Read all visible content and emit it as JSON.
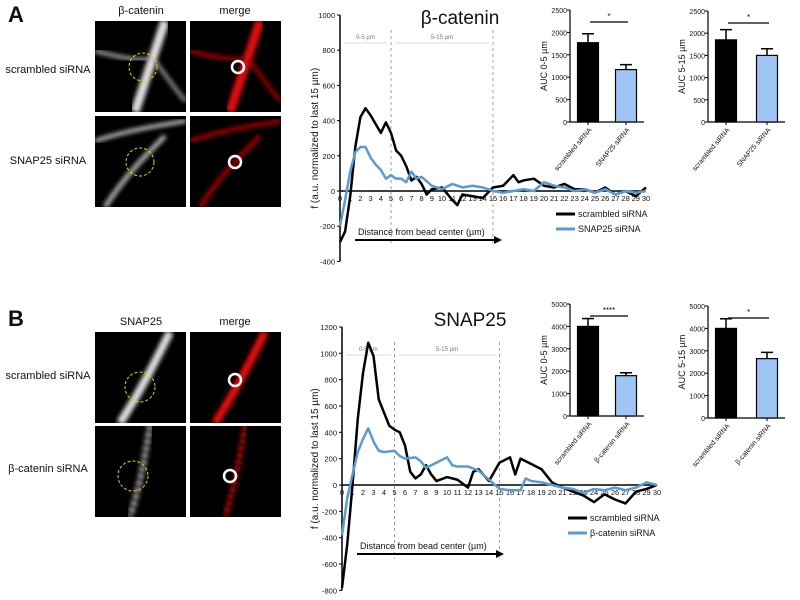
{
  "panels": [
    {
      "label": "A",
      "image_columns": [
        "β-catenin",
        "merge"
      ],
      "image_rows": [
        "scrambled siRNA",
        "SNAP25 siRNA"
      ]
    },
    {
      "label": "B",
      "image_columns": [
        "SNAP25",
        "merge"
      ],
      "image_rows": [
        "scrambled siRNA",
        "β-catenin siRNA"
      ]
    }
  ],
  "colors": {
    "scrambled": "#000000",
    "knockdown_line": "#5b9bd5",
    "knockdown_bar": "#9ec5f5",
    "merge": "#e01010"
  },
  "chart_data": [
    {
      "type": "line",
      "title": "β-catenin",
      "ylabel": "f (a.u. normalized to last 15 µm)",
      "xlabel": "Distance from bead center (µm)",
      "ylim": [
        -400,
        1000
      ],
      "yticks": [
        -400,
        -200,
        0,
        200,
        400,
        600,
        800,
        1000
      ],
      "xlim": [
        0,
        30
      ],
      "xticks": [
        0,
        1,
        2,
        3,
        4,
        5,
        6,
        7,
        8,
        9,
        10,
        11,
        12,
        13,
        14,
        15,
        16,
        17,
        18,
        19,
        20,
        21,
        22,
        23,
        24,
        25,
        26,
        27,
        28,
        29,
        30
      ],
      "regions": [
        {
          "label": "0-5 µm",
          "from": 0,
          "to": 5
        },
        {
          "label": "5-15 µm",
          "from": 5,
          "to": 15
        }
      ],
      "legend": "bottom-right",
      "series": [
        {
          "name": "scrambled siRNA",
          "x": [
            0,
            0.5,
            1,
            1.5,
            2,
            2.5,
            3,
            3.5,
            4,
            4.5,
            5,
            5.5,
            6,
            6.5,
            7,
            7.5,
            8,
            8.5,
            9,
            10,
            11,
            11.5,
            12,
            13,
            14,
            15,
            16,
            17,
            17.5,
            18,
            19,
            20,
            21,
            22,
            23,
            24,
            25,
            26,
            27,
            28,
            29,
            30
          ],
          "y": [
            -290,
            -230,
            -30,
            250,
            420,
            470,
            430,
            380,
            330,
            390,
            330,
            230,
            200,
            140,
            60,
            80,
            40,
            -20,
            10,
            20,
            -50,
            -80,
            -20,
            -30,
            -40,
            20,
            30,
            90,
            50,
            60,
            70,
            30,
            20,
            40,
            10,
            10,
            -10,
            20,
            -20,
            0,
            -30,
            20
          ]
        },
        {
          "name": "SNAP25 siRNA",
          "x": [
            0,
            0.5,
            1,
            1.5,
            2,
            2.5,
            3,
            3.5,
            4,
            4.5,
            5,
            5.5,
            6,
            6.5,
            7,
            7.5,
            8,
            9,
            10,
            11,
            12,
            13,
            14,
            15,
            16,
            17,
            18,
            19,
            20,
            21,
            22,
            23,
            24,
            25,
            26,
            27,
            28,
            29,
            30
          ],
          "y": [
            -200,
            -50,
            110,
            220,
            250,
            250,
            190,
            150,
            120,
            70,
            90,
            70,
            70,
            50,
            110,
            70,
            80,
            30,
            10,
            40,
            20,
            30,
            20,
            0,
            -10,
            0,
            10,
            0,
            50,
            30,
            20,
            0,
            10,
            -10,
            10,
            -20,
            0,
            -10,
            0
          ]
        }
      ]
    },
    {
      "type": "bar",
      "ylabel": "AUC 0-5 µm",
      "ylim": [
        0,
        2500
      ],
      "yticks": [
        0,
        500,
        1000,
        1500,
        2000,
        2500
      ],
      "categories": [
        "scrambled siRNA",
        "SNAP25 siRNA"
      ],
      "values": [
        1770,
        1170
      ],
      "errors": [
        200,
        110
      ],
      "significance": "*"
    },
    {
      "type": "bar",
      "ylabel": "AUC 5-15 µm",
      "ylim": [
        0,
        2500
      ],
      "yticks": [
        0,
        500,
        1000,
        1500,
        2000,
        2500
      ],
      "categories": [
        "scrambled siRNA",
        "SNAP25 siRNA"
      ],
      "values": [
        1850,
        1500
      ],
      "errors": [
        230,
        150
      ],
      "significance": "*"
    },
    {
      "type": "line",
      "title": "SNAP25",
      "ylabel": "f (a.u. normalized to last 15 µm)",
      "xlabel": "Distance from bead center (µm)",
      "ylim": [
        -800,
        1200
      ],
      "yticks": [
        -800,
        -600,
        -400,
        -200,
        0,
        200,
        400,
        600,
        800,
        1000,
        1200
      ],
      "xlim": [
        0,
        30
      ],
      "xticks": [
        0,
        1,
        2,
        3,
        4,
        5,
        6,
        7,
        8,
        9,
        10,
        11,
        12,
        13,
        14,
        15,
        16,
        17,
        18,
        19,
        20,
        21,
        22,
        23,
        24,
        25,
        26,
        27,
        28,
        29,
        30
      ],
      "regions": [
        {
          "label": "0-5 µm",
          "from": 0,
          "to": 5
        },
        {
          "label": "5-15 µm",
          "from": 5,
          "to": 15
        }
      ],
      "legend": "bottom-right",
      "series": [
        {
          "name": "scrambled siRNA",
          "x": [
            0,
            0.5,
            1,
            1.5,
            2,
            2.5,
            3,
            3.5,
            4,
            4.5,
            5,
            5.5,
            6,
            6.5,
            7,
            7.5,
            8,
            8.5,
            9,
            10,
            11,
            12,
            12.5,
            13,
            14,
            15,
            16,
            16.5,
            17,
            18,
            19,
            20,
            21,
            22,
            23,
            24,
            25,
            26,
            27,
            28,
            29,
            30
          ],
          "y": [
            -780,
            -450,
            0,
            500,
            850,
            1080,
            980,
            650,
            550,
            450,
            420,
            400,
            300,
            100,
            50,
            80,
            150,
            80,
            30,
            60,
            40,
            -20,
            100,
            120,
            30,
            170,
            210,
            80,
            200,
            160,
            120,
            20,
            -20,
            -50,
            -80,
            -130,
            -70,
            -110,
            -140,
            -50,
            -30,
            0
          ]
        },
        {
          "name": "β-catenin siRNA",
          "x": [
            0,
            0.5,
            1,
            1.5,
            2,
            2.5,
            3,
            3.5,
            4,
            5,
            5.5,
            6,
            7,
            7.5,
            8,
            9,
            10,
            10.5,
            11,
            12,
            13,
            14,
            15,
            16,
            17,
            17.5,
            18,
            19,
            20,
            21,
            22,
            23,
            24,
            25,
            26,
            27,
            28,
            29,
            30
          ],
          "y": [
            -380,
            -100,
            80,
            250,
            350,
            430,
            330,
            260,
            250,
            260,
            220,
            200,
            210,
            180,
            130,
            170,
            210,
            150,
            140,
            140,
            110,
            40,
            -30,
            -40,
            -40,
            50,
            30,
            20,
            0,
            -20,
            -30,
            -60,
            -30,
            -40,
            -20,
            -40,
            -20,
            20,
            0
          ]
        }
      ]
    },
    {
      "type": "bar",
      "ylabel": "AUC 0-5 µm",
      "ylim": [
        0,
        5000
      ],
      "yticks": [
        0,
        1000,
        2000,
        3000,
        4000,
        5000
      ],
      "categories": [
        "scrambled siRNA",
        "β-catenin siRNA"
      ],
      "values": [
        4000,
        1800
      ],
      "errors": [
        350,
        130
      ],
      "significance": "****"
    },
    {
      "type": "bar",
      "ylabel": "AUC 5-15 µm",
      "ylim": [
        0,
        5000
      ],
      "yticks": [
        0,
        1000,
        2000,
        3000,
        4000,
        5000
      ],
      "categories": [
        "scrambled siRNA",
        "β-catenin siRNA"
      ],
      "values": [
        4000,
        2650
      ],
      "errors": [
        430,
        280
      ],
      "significance": "*"
    }
  ]
}
